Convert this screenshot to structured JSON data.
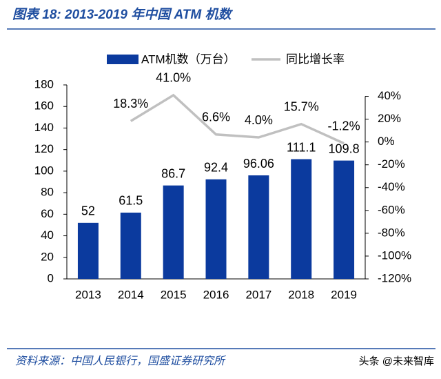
{
  "chart_data": {
    "type": "bar-line",
    "title": "图表 18:  2013-2019 年中国 ATM 机数",
    "source": "资料来源：中国人民银行，国盛证券研究所",
    "watermark": "头条 @未来智库",
    "categories": [
      "2013",
      "2014",
      "2015",
      "2016",
      "2017",
      "2018",
      "2019"
    ],
    "series": [
      {
        "name": "ATM机数（万台）",
        "color": "#0b3a9e",
        "kind": "bar",
        "values": [
          52,
          61.5,
          86.7,
          92.4,
          96.06,
          111.1,
          109.8
        ]
      },
      {
        "name": "同比增长率",
        "color": "#c0c0c0",
        "kind": "line",
        "axis": "y2",
        "values": [
          null,
          18.3,
          41.0,
          6.6,
          4.0,
          15.7,
          -1.2
        ],
        "value_labels": [
          null,
          "18.3%",
          "41.0%",
          "6.6%",
          "4.0%",
          "15.7%",
          "-1.2%"
        ]
      }
    ],
    "ylim": [
      0,
      180
    ],
    "yticks": [
      0,
      20,
      40,
      60,
      80,
      100,
      120,
      140,
      160,
      180
    ],
    "y2lim": [
      -120,
      50
    ],
    "y2ticks": [
      {
        "value": 40,
        "label": "40%"
      },
      {
        "value": 20,
        "label": "20%"
      },
      {
        "value": 0,
        "label": "0%"
      },
      {
        "value": -20,
        "label": "-20%"
      },
      {
        "value": -40,
        "label": "-40%"
      },
      {
        "value": -60,
        "label": "-60%"
      },
      {
        "value": -80,
        "label": "-80%"
      },
      {
        "value": -100,
        "label": "-100%"
      },
      {
        "value": -120,
        "label": "-120%"
      }
    ],
    "grid": false
  }
}
